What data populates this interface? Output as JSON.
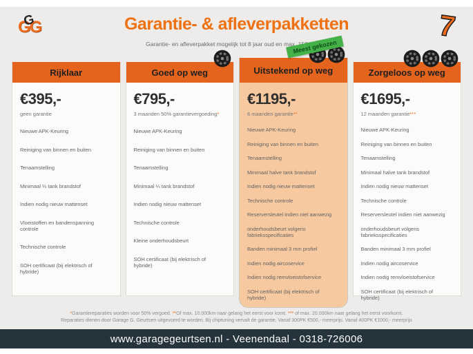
{
  "brand": {
    "logo_text": "GG",
    "mark": "7"
  },
  "header": {
    "title": "Garantie- & afleverpakketten",
    "subtitle": "Garantie- en afleverpakket mogelijk tot 8 jaar oud en max. 150.000km"
  },
  "badge": {
    "label": "Meest gekozen"
  },
  "packages": [
    {
      "name": "Rijklaar",
      "price": "€395,-",
      "price_note": "geen garantie",
      "note_marker": "",
      "wheels": 0,
      "highlight": false,
      "features": [
        "Nieuwe APK-Keuring",
        "Reiniging van binnen en buiten",
        "Tenaamstelling",
        "Minimaal ¼  tank brandstof",
        "Indien nodig nieuw mattenset",
        "Vloeistoffen en bandenspanning controle",
        "Technische controle",
        "SOH certificaat (bij elektrisch of hybride)"
      ]
    },
    {
      "name": "Goed op weg",
      "price": "€795,-",
      "price_note": "3 maanden 50% garantievergoeding",
      "note_marker": "*",
      "wheels": 1,
      "highlight": false,
      "features": [
        "Nieuwe APK-Keuring",
        "Reiniging van binnen en buiten",
        "Tenaamstelling",
        "Minimaal ¼ tank brandstof",
        "Indien nodig nieuw mattenset",
        "Technische controle",
        "Kleine onderhoudsbeurt",
        "SOH certificaat (bij elektrisch of hybride)"
      ]
    },
    {
      "name": "Uitstekend op weg",
      "price": "€1195,-",
      "price_note": "6 maanden garantie",
      "note_marker": "**",
      "wheels": 2,
      "highlight": true,
      "features": [
        "Nieuwe APK-Keuring",
        "Reiniging van binnen en buiten",
        "Tenaamstelling",
        "Minimaal halve tank brandstof",
        "Indien nodig nieuw mattenset",
        "Technische controle",
        "Reserversleutel indien niet aanwezig",
        "onderhoudsbeurt volgens fabrieksspecificaties",
        "Banden minimaal 3 mm profiel",
        "Indien nodig aircoservice",
        "Indien nodig remvloeistofservice",
        "SOH certificaat (bij elektrisch of hybride)"
      ]
    },
    {
      "name": "Zorgeloos op weg",
      "price": "€1695,-",
      "price_note": "12 maanden garantie",
      "note_marker": "***",
      "wheels": 3,
      "highlight": false,
      "features": [
        "Nieuwe APK-Keuring",
        "Reiniging van binnen en buiten",
        "Tenaamstelling",
        "Minimaal halve tank brandstof",
        "Indien nodig nieuw mattenset",
        "Technische controle",
        "Reserversleutel indien niet aanwezig",
        "onderhoudsbeurt volgens fabrieksspecificaties",
        "Banden minimaal 3 mm profiel",
        "Indien nodig aircoservice",
        "Indien nodig remvloeistofservice",
        "SOH certificaat (bij elektrisch of hybride)"
      ]
    }
  ],
  "footnotes": {
    "line1_segments": [
      {
        "text": "*",
        "accent": true
      },
      {
        "text": "Garantiereparaties worden voor 50% vergoed. ",
        "accent": false
      },
      {
        "text": "**",
        "accent": true
      },
      {
        "text": "Of max. 10.000km naar gelang het eerst voor komt. ",
        "accent": false
      },
      {
        "text": "***",
        "accent": true
      },
      {
        "text": " of max. 20.000km naar gelang het eerst voorkomt.",
        "accent": false
      }
    ],
    "line2": "Reparaties dienen door Garage G. Geurtsen uitgevoerd te worden. Bij chiptuning vervalt de garantie. Vanaf 300PK €500,- meerprijs. Vanaf 400PK €1000,- meerprijs"
  },
  "footer": {
    "text": "www.garagegeurtsen.nl - Veenendaal - 0318-726006"
  },
  "colors": {
    "accent": "#ed6c1e",
    "title": "#ee7214",
    "header_bar": "#e4641d",
    "highlight_bg": "#f6c9a0",
    "badge_bg": "#45b149",
    "badge_text": "#0e4d17",
    "footer_bg": "#25333c",
    "page_bg": "#edecea"
  }
}
